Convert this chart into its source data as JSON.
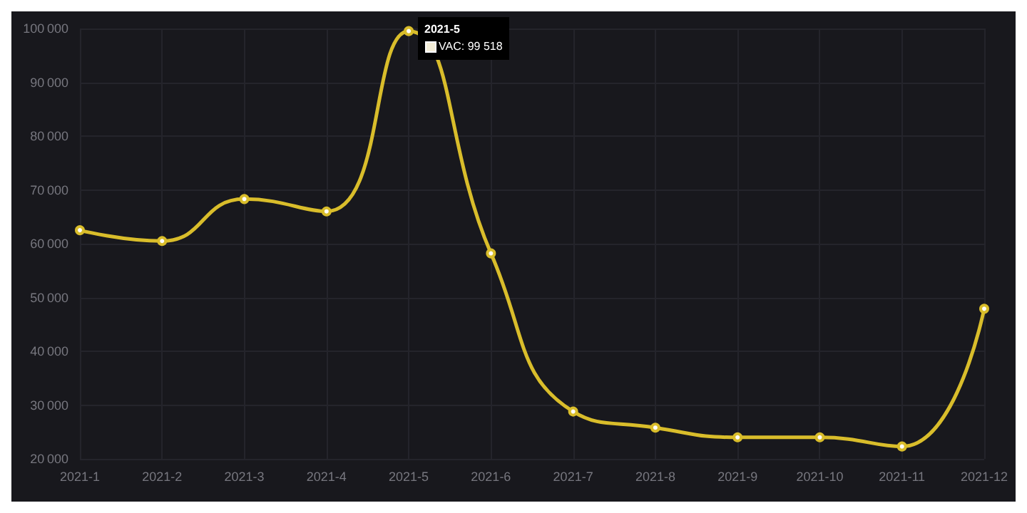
{
  "chart_data": {
    "type": "line",
    "categories": [
      "2021-1",
      "2021-2",
      "2021-3",
      "2021-4",
      "2021-5",
      "2021-6",
      "2021-7",
      "2021-8",
      "2021-9",
      "2021-10",
      "2021-11",
      "2021-12"
    ],
    "series": [
      {
        "color": "#d9bd2b",
        "values": [
          62500,
          60500,
          68300,
          66000,
          99518,
          58200,
          28800,
          25800,
          24000,
          24000,
          22300,
          47900
        ]
      }
    ],
    "annotations": [
      {
        "text": "2021-5",
        "x": "2021-5",
        "y": 99518
      },
      {
        "text": "VAC: 99 518",
        "x": "2021-5",
        "y": 99518
      }
    ],
    "ylim": [
      20000,
      100000
    ],
    "yticks": [
      20000,
      30000,
      40000,
      50000,
      60000,
      70000,
      80000,
      90000,
      100000
    ],
    "grid": true,
    "marker": "circle",
    "line_style": "solid"
  }
}
